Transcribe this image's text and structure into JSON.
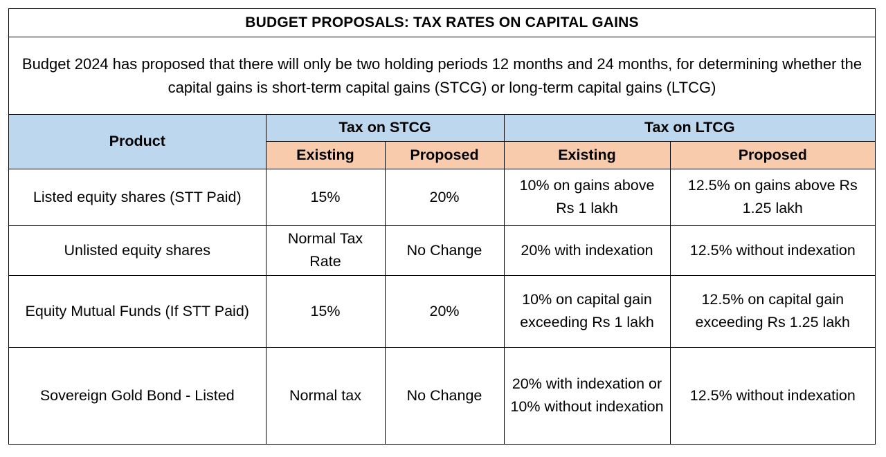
{
  "title": "BUDGET PROPOSALS: TAX RATES ON CAPITAL GAINS",
  "intro": "Budget 2024 has proposed that there will only be two holding periods 12 months and 24 months, for determining whether the capital gains is short-term capital gains (STCG) or long-term capital gains (LTCG)",
  "table": {
    "product_header": "Product",
    "stcg_header": "Tax on STCG",
    "ltcg_header": "Tax on LTCG",
    "sub_headers": [
      "Existing",
      "Proposed",
      "Existing",
      "Proposed"
    ],
    "rows": [
      [
        "Listed equity shares (STT Paid)",
        "15%",
        "20%",
        "10% on gains above Rs 1 lakh",
        "12.5% on gains above Rs 1.25 lakh"
      ],
      [
        "Unlisted equity shares",
        "Normal Tax Rate",
        "No Change",
        "20% with indexation",
        "12.5% without indexation"
      ],
      [
        "Equity Mutual Funds (If STT Paid)",
        "15%",
        "20%",
        "10% on capital gain exceeding Rs 1 lakh",
        "12.5% on capital gain exceeding Rs 1.25 lakh"
      ],
      [
        "Sovereign Gold Bond - Listed",
        "Normal tax",
        "No Change",
        "20% with indexation or 10% without indexation",
        "12.5% without indexation"
      ]
    ]
  },
  "colors": {
    "header_blue": "#bdd7ee",
    "subheader_peach": "#f8cbad"
  }
}
